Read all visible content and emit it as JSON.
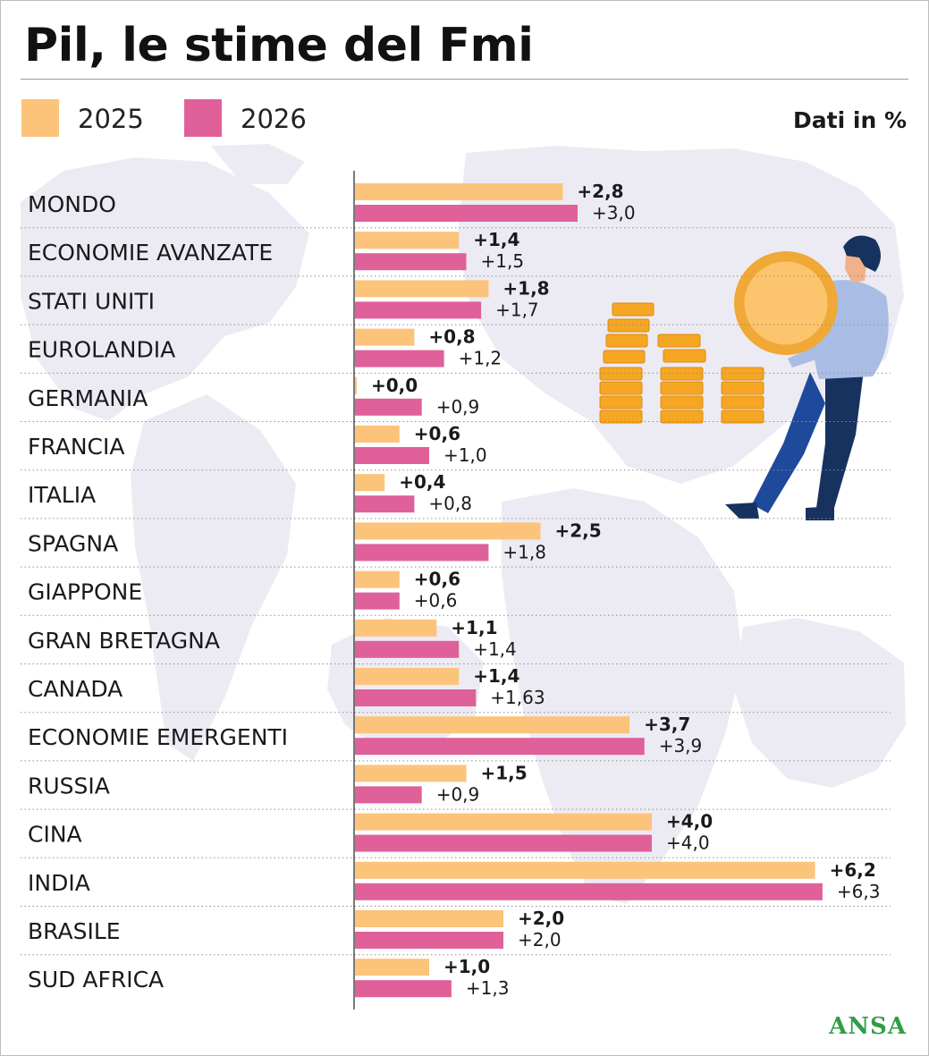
{
  "header": {
    "title": "Pil, le stime del Fmi",
    "unit": "Dati in %"
  },
  "brand": "ANSA",
  "colors": {
    "series_2025": "#fcc37b",
    "series_2026": "#e0609a",
    "map": "#ecebf3",
    "brand": "#2f9e44"
  },
  "chart_data": {
    "type": "bar",
    "orientation": "horizontal",
    "title": "Pil, le stime del Fmi",
    "unit_note": "Dati in %",
    "categories": [
      "MONDO",
      "ECONOMIE AVANZATE",
      "STATI UNITI",
      "EUROLANDIA",
      "GERMANIA",
      "FRANCIA",
      "ITALIA",
      "SPAGNA",
      "GIAPPONE",
      "GRAN BRETAGNA",
      "CANADA",
      "ECONOMIE EMERGENTI",
      "RUSSIA",
      "CINA",
      "INDIA",
      "BRASILE",
      "SUD AFRICA"
    ],
    "series": [
      {
        "name": "2025",
        "values": [
          2.8,
          1.4,
          1.8,
          0.8,
          0.0,
          0.6,
          0.4,
          2.5,
          0.6,
          1.1,
          1.4,
          3.7,
          1.5,
          4.0,
          6.2,
          2.0,
          1.0
        ],
        "labels": [
          "+2,8",
          "+1,4",
          "+1,8",
          "+0,8",
          "+0,0",
          "+0,6",
          "+0,4",
          "+2,5",
          "+0,6",
          "+1,1",
          "+1,4",
          "+3,7",
          "+1,5",
          "+4,0",
          "+6,2",
          "+2,0",
          "+1,0"
        ]
      },
      {
        "name": "2026",
        "values": [
          3.0,
          1.5,
          1.7,
          1.2,
          0.9,
          1.0,
          0.8,
          1.8,
          0.6,
          1.4,
          1.63,
          3.9,
          0.9,
          4.0,
          6.3,
          2.0,
          1.3
        ],
        "labels": [
          "+3,0",
          "+1,5",
          "+1,7",
          "+1,2",
          "+0,9",
          "+1,0",
          "+0,8",
          "+1,8",
          "+0,6",
          "+1,4",
          "+1,63",
          "+3,9",
          "+0,9",
          "+4,0",
          "+6,3",
          "+2,0",
          "+1,3"
        ]
      }
    ],
    "xlim": [
      0,
      6.3
    ],
    "grid": false,
    "legend_position": "top-left"
  }
}
